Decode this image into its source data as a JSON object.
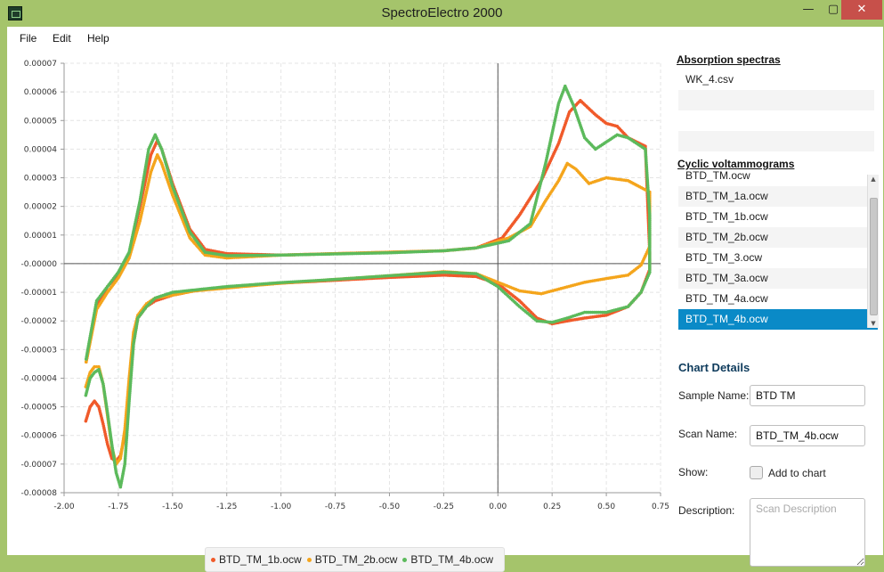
{
  "window": {
    "title": "SpectroElectro 2000",
    "minimize": "—",
    "maximize": "▢",
    "close": "✕"
  },
  "menu": [
    "File",
    "Edit",
    "Help"
  ],
  "chart_data": {
    "type": "scatter",
    "xlim": [
      -2.0,
      0.75
    ],
    "ylim": [
      -8e-05,
      7e-05
    ],
    "grid": true,
    "legend_position": "bottom",
    "x_ticks": [
      "-2.00",
      "-1.75",
      "-1.50",
      "-1.25",
      "-1.00",
      "-0.75",
      "-0.50",
      "-0.25",
      "0.00",
      "0.25",
      "0.50",
      "0.75"
    ],
    "y_ticks": [
      "0.00007",
      "0.00006",
      "0.00005",
      "0.00004",
      "0.00003",
      "0.00002",
      "0.00001",
      "-0.00000",
      "-0.00001",
      "-0.00002",
      "-0.00003",
      "-0.00004",
      "-0.00005",
      "-0.00006",
      "-0.00007",
      "-0.00008"
    ],
    "series": [
      {
        "name": "BTD_TM_1b.ocw",
        "color": "#f05a2a",
        "points": [
          [
            -1.9,
            -5.5e-05
          ],
          [
            -1.88,
            -5e-05
          ],
          [
            -1.86,
            -4.8e-05
          ],
          [
            -1.84,
            -5e-05
          ],
          [
            -1.82,
            -5.6e-05
          ],
          [
            -1.8,
            -6.3e-05
          ],
          [
            -1.78,
            -6.8e-05
          ],
          [
            -1.76,
            -6.9e-05
          ],
          [
            -1.74,
            -6.7e-05
          ],
          [
            -1.72,
            -6e-05
          ],
          [
            -1.7,
            -4.5e-05
          ],
          [
            -1.68,
            -2.8e-05
          ],
          [
            -1.66,
            -1.9e-05
          ],
          [
            -1.62,
            -1.5e-05
          ],
          [
            -1.58,
            -1.3e-05
          ],
          [
            -1.5,
            -1.1e-05
          ],
          [
            -1.4,
            -9.5e-06
          ],
          [
            -1.25,
            -8.2e-06
          ],
          [
            -1.0,
            -6.8e-06
          ],
          [
            -0.75,
            -5.8e-06
          ],
          [
            -0.5,
            -4.8e-06
          ],
          [
            -0.25,
            -4e-06
          ],
          [
            -0.1,
            -4.5e-06
          ],
          [
            0.0,
            -7e-06
          ],
          [
            0.1,
            -1.3e-05
          ],
          [
            0.18,
            -1.9e-05
          ],
          [
            0.25,
            -2.1e-05
          ],
          [
            0.32,
            -2e-05
          ],
          [
            0.4,
            -1.9e-05
          ],
          [
            0.5,
            -1.8e-05
          ],
          [
            0.6,
            -1.5e-05
          ],
          [
            0.66,
            -1e-05
          ],
          [
            0.7,
            -2e-06
          ],
          [
            0.7,
            4e-06
          ],
          [
            0.68,
            4.1e-05
          ],
          [
            0.6,
            4.4e-05
          ],
          [
            0.55,
            4.8e-05
          ],
          [
            0.5,
            4.9e-05
          ],
          [
            0.45,
            5.2e-05
          ],
          [
            0.38,
            5.7e-05
          ],
          [
            0.33,
            5.3e-05
          ],
          [
            0.28,
            4.2e-05
          ],
          [
            0.2,
            2.9e-05
          ],
          [
            0.1,
            1.7e-05
          ],
          [
            0.02,
            9e-06
          ],
          [
            -0.1,
            5.5e-06
          ],
          [
            -0.25,
            4.5e-06
          ],
          [
            -0.5,
            4e-06
          ],
          [
            -0.75,
            3.5e-06
          ],
          [
            -1.0,
            3e-06
          ],
          [
            -1.25,
            3.5e-06
          ],
          [
            -1.35,
            5e-06
          ],
          [
            -1.42,
            1.2e-05
          ],
          [
            -1.5,
            2.8e-05
          ],
          [
            -1.55,
            4e-05
          ],
          [
            -1.57,
            4.3e-05
          ],
          [
            -1.6,
            3.8e-05
          ],
          [
            -1.65,
            2e-05
          ],
          [
            -1.7,
            3e-06
          ],
          [
            -1.75,
            -4e-06
          ],
          [
            -1.8,
            -8e-06
          ],
          [
            -1.85,
            -1.5e-05
          ],
          [
            -1.9,
            -3.5e-05
          ]
        ]
      },
      {
        "name": "BTD_TM_2b.ocw",
        "color": "#f4a51c",
        "points": [
          [
            -1.9,
            -4.3e-05
          ],
          [
            -1.88,
            -3.8e-05
          ],
          [
            -1.86,
            -3.6e-05
          ],
          [
            -1.84,
            -3.6e-05
          ],
          [
            -1.82,
            -4.2e-05
          ],
          [
            -1.8,
            -5.3e-05
          ],
          [
            -1.78,
            -6.4e-05
          ],
          [
            -1.76,
            -7e-05
          ],
          [
            -1.74,
            -6.8e-05
          ],
          [
            -1.72,
            -5.8e-05
          ],
          [
            -1.7,
            -4e-05
          ],
          [
            -1.68,
            -2.4e-05
          ],
          [
            -1.66,
            -1.8e-05
          ],
          [
            -1.62,
            -1.4e-05
          ],
          [
            -1.58,
            -1.2e-05
          ],
          [
            -1.5,
            -1.1e-05
          ],
          [
            -1.4,
            -9.5e-06
          ],
          [
            -1.25,
            -8.5e-06
          ],
          [
            -1.0,
            -6.8e-06
          ],
          [
            -0.75,
            -5.5e-06
          ],
          [
            -0.5,
            -4.2e-06
          ],
          [
            -0.25,
            -2.8e-06
          ],
          [
            -0.1,
            -3.5e-06
          ],
          [
            0.0,
            -6.5e-06
          ],
          [
            0.1,
            -9.5e-06
          ],
          [
            0.2,
            -1.05e-05
          ],
          [
            0.3,
            -8.5e-06
          ],
          [
            0.4,
            -6.5e-06
          ],
          [
            0.5,
            -5.2e-06
          ],
          [
            0.6,
            -4e-06
          ],
          [
            0.66,
            -5e-07
          ],
          [
            0.7,
            6e-06
          ],
          [
            0.7,
            1.5e-05
          ],
          [
            0.7,
            2.5e-05
          ],
          [
            0.6,
            2.9e-05
          ],
          [
            0.5,
            3e-05
          ],
          [
            0.42,
            2.8e-05
          ],
          [
            0.36,
            3.3e-05
          ],
          [
            0.32,
            3.5e-05
          ],
          [
            0.28,
            2.9e-05
          ],
          [
            0.22,
            2.2e-05
          ],
          [
            0.15,
            1.3e-05
          ],
          [
            0.05,
            9e-06
          ],
          [
            -0.1,
            5.5e-06
          ],
          [
            -0.25,
            4.5e-06
          ],
          [
            -0.5,
            4e-06
          ],
          [
            -0.75,
            3.5e-06
          ],
          [
            -1.0,
            3e-06
          ],
          [
            -1.25,
            2e-06
          ],
          [
            -1.35,
            3e-06
          ],
          [
            -1.42,
            9e-06
          ],
          [
            -1.5,
            2.4e-05
          ],
          [
            -1.55,
            3.5e-05
          ],
          [
            -1.57,
            3.8e-05
          ],
          [
            -1.6,
            3.2e-05
          ],
          [
            -1.65,
            1.5e-05
          ],
          [
            -1.7,
            2e-06
          ],
          [
            -1.75,
            -5e-06
          ],
          [
            -1.8,
            -1e-05
          ],
          [
            -1.85,
            -1.6e-05
          ],
          [
            -1.9,
            -3.5e-05
          ]
        ]
      },
      {
        "name": "BTD_TM_4b.ocw",
        "color": "#5cba5c",
        "points": [
          [
            -1.9,
            -4.6e-05
          ],
          [
            -1.88,
            -4e-05
          ],
          [
            -1.86,
            -3.8e-05
          ],
          [
            -1.84,
            -3.7e-05
          ],
          [
            -1.82,
            -4.2e-05
          ],
          [
            -1.8,
            -5.2e-05
          ],
          [
            -1.78,
            -6.3e-05
          ],
          [
            -1.76,
            -7.3e-05
          ],
          [
            -1.74,
            -7.8e-05
          ],
          [
            -1.72,
            -7e-05
          ],
          [
            -1.7,
            -4.8e-05
          ],
          [
            -1.68,
            -2.8e-05
          ],
          [
            -1.66,
            -1.9e-05
          ],
          [
            -1.62,
            -1.5e-05
          ],
          [
            -1.58,
            -1.2e-05
          ],
          [
            -1.5,
            -1e-05
          ],
          [
            -1.4,
            -9.2e-06
          ],
          [
            -1.25,
            -8e-06
          ],
          [
            -1.0,
            -6.6e-06
          ],
          [
            -0.75,
            -5.5e-06
          ],
          [
            -0.5,
            -4.2e-06
          ],
          [
            -0.25,
            -3e-06
          ],
          [
            -0.1,
            -3.5e-06
          ],
          [
            0.0,
            -8e-06
          ],
          [
            0.1,
            -1.5e-05
          ],
          [
            0.18,
            -2e-05
          ],
          [
            0.25,
            -2.05e-05
          ],
          [
            0.32,
            -1.9e-05
          ],
          [
            0.4,
            -1.7e-05
          ],
          [
            0.5,
            -1.7e-05
          ],
          [
            0.6,
            -1.5e-05
          ],
          [
            0.66,
            -1e-05
          ],
          [
            0.7,
            -3e-06
          ],
          [
            0.7,
            5e-06
          ],
          [
            0.7,
            1.7e-05
          ],
          [
            0.68,
            4e-05
          ],
          [
            0.6,
            4.4e-05
          ],
          [
            0.55,
            4.5e-05
          ],
          [
            0.45,
            4e-05
          ],
          [
            0.4,
            4.4e-05
          ],
          [
            0.35,
            5.5e-05
          ],
          [
            0.31,
            6.2e-05
          ],
          [
            0.28,
            5.6e-05
          ],
          [
            0.22,
            3.5e-05
          ],
          [
            0.15,
            1.4e-05
          ],
          [
            0.05,
            8e-06
          ],
          [
            -0.1,
            5.5e-06
          ],
          [
            -0.25,
            4.5e-06
          ],
          [
            -0.5,
            3.8e-06
          ],
          [
            -0.75,
            3.4e-06
          ],
          [
            -1.0,
            3e-06
          ],
          [
            -1.25,
            2.8e-06
          ],
          [
            -1.35,
            4e-06
          ],
          [
            -1.42,
            1.1e-05
          ],
          [
            -1.5,
            2.7e-05
          ],
          [
            -1.55,
            4e-05
          ],
          [
            -1.58,
            4.5e-05
          ],
          [
            -1.61,
            4e-05
          ],
          [
            -1.65,
            2.2e-05
          ],
          [
            -1.7,
            4e-06
          ],
          [
            -1.75,
            -3e-06
          ],
          [
            -1.8,
            -8e-06
          ],
          [
            -1.85,
            -1.3e-05
          ],
          [
            -1.9,
            -3.4e-05
          ]
        ]
      }
    ]
  },
  "side": {
    "absorption_title": "Absorption spectras",
    "absorption_items": [
      "WK_4.csv",
      "",
      "",
      ""
    ],
    "cv_title": "Cyclic voltammograms",
    "cv_items": [
      "BTD_TM.ocw",
      "BTD_TM_1a.ocw",
      "BTD_TM_1b.ocw",
      "BTD_TM_2b.ocw",
      "BTD_TM_3.ocw",
      "BTD_TM_3a.ocw",
      "BTD_TM_4a.ocw",
      "BTD_TM_4b.ocw"
    ],
    "cv_selected_index": 7
  },
  "details": {
    "title": "Chart Details",
    "sample_label": "Sample Name:",
    "sample_value": "BTD TM",
    "scan_label": "Scan Name:",
    "scan_value": "BTD_TM_4b.ocw",
    "show_label": "Show:",
    "add_to_chart": "Add to chart",
    "description_label": "Description:",
    "description_placeholder": "Scan Description"
  }
}
